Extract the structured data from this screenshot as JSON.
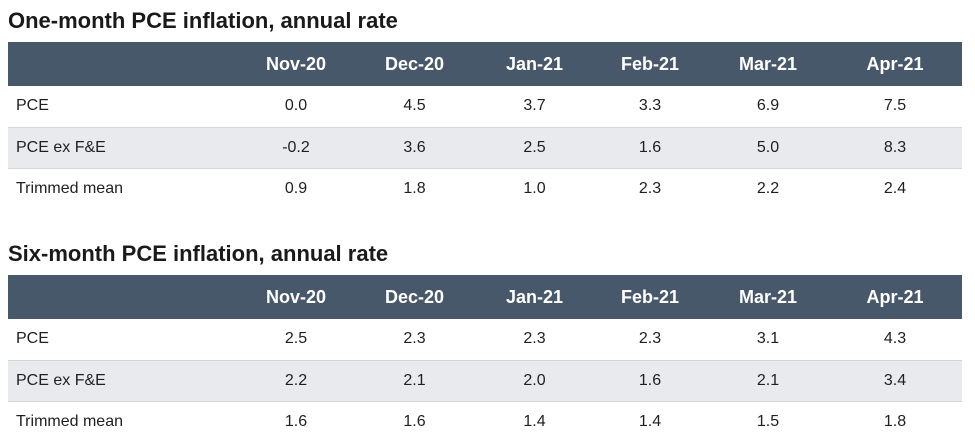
{
  "chart_data": [
    {
      "type": "table",
      "title": "One-month PCE inflation, annual rate",
      "columns": [
        "",
        "Nov-20",
        "Dec-20",
        "Jan-21",
        "Feb-21",
        "Mar-21",
        "Apr-21"
      ],
      "rows": [
        {
          "label": "PCE",
          "values": [
            "0.0",
            "4.5",
            "3.7",
            "3.3",
            "6.9",
            "7.5"
          ]
        },
        {
          "label": "PCE ex F&E",
          "values": [
            "-0.2",
            "3.6",
            "2.5",
            "1.6",
            "5.0",
            "8.3"
          ]
        },
        {
          "label": "Trimmed mean",
          "values": [
            "0.9",
            "1.8",
            "1.0",
            "2.3",
            "2.2",
            "2.4"
          ]
        }
      ]
    },
    {
      "type": "table",
      "title": "Six-month PCE inflation, annual rate",
      "columns": [
        "",
        "Nov-20",
        "Dec-20",
        "Jan-21",
        "Feb-21",
        "Mar-21",
        "Apr-21"
      ],
      "rows": [
        {
          "label": "PCE",
          "values": [
            "2.5",
            "2.3",
            "2.3",
            "2.3",
            "3.1",
            "4.3"
          ]
        },
        {
          "label": "PCE ex F&E",
          "values": [
            "2.2",
            "2.1",
            "2.0",
            "1.6",
            "2.1",
            "3.4"
          ]
        },
        {
          "label": "Trimmed mean",
          "values": [
            "1.6",
            "1.6",
            "1.4",
            "1.4",
            "1.5",
            "1.8"
          ]
        }
      ]
    }
  ],
  "colors": {
    "header_bg": "#48586b",
    "header_text": "#ffffff",
    "alt_row_bg": "#e8eaed"
  }
}
